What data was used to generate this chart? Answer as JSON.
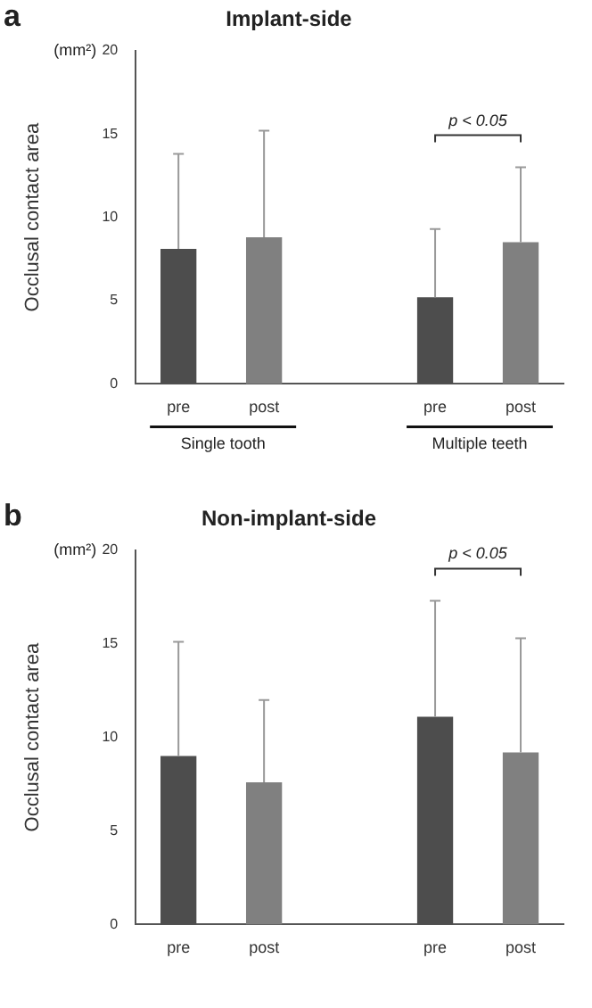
{
  "chart_data": [
    {
      "type": "bar",
      "title": "Implant-side",
      "ylabel": "Occlusal contact area",
      "categories": [
        "pre",
        "post",
        null,
        "pre",
        "post"
      ],
      "values": [
        8.1,
        8.8,
        null,
        5.2,
        8.5
      ],
      "colors": [
        "#4d4d4d",
        "#808080",
        "#808080",
        "#4d4d4d",
        "#808080"
      ],
      "errors": [
        [
          8.1,
          13.8
        ],
        [
          8.8,
          15.2
        ],
        null,
        [
          5.2,
          9.3
        ],
        [
          8.5,
          13.0
        ]
      ],
      "ylim": [
        0,
        20
      ],
      "yticks": [
        0,
        5,
        10,
        15,
        20
      ],
      "grid": false,
      "legend": false,
      "annotations": [
        "a",
        "(mm²)",
        "p < 0.05",
        "Single tooth",
        "Multiple teeth"
      ]
    },
    {
      "type": "bar",
      "title": "Non-implant-side",
      "ylabel": "Occlusal contact area",
      "categories": [
        "pre",
        "post",
        null,
        "pre",
        "post"
      ],
      "values": [
        9.0,
        7.6,
        null,
        11.1,
        9.2
      ],
      "colors": [
        "#4d4d4d",
        "#808080",
        "#808080",
        "#4d4d4d",
        "#808080"
      ],
      "errors": [
        [
          9.0,
          15.1
        ],
        [
          7.6,
          12.0
        ],
        null,
        [
          11.1,
          17.3
        ],
        [
          9.2,
          15.3
        ]
      ],
      "ylim": [
        0,
        20
      ],
      "yticks": [
        0,
        5,
        10,
        15,
        20
      ],
      "grid": false,
      "legend": false,
      "annotations": [
        "b",
        "(mm²)",
        "p < 0.05"
      ]
    }
  ]
}
